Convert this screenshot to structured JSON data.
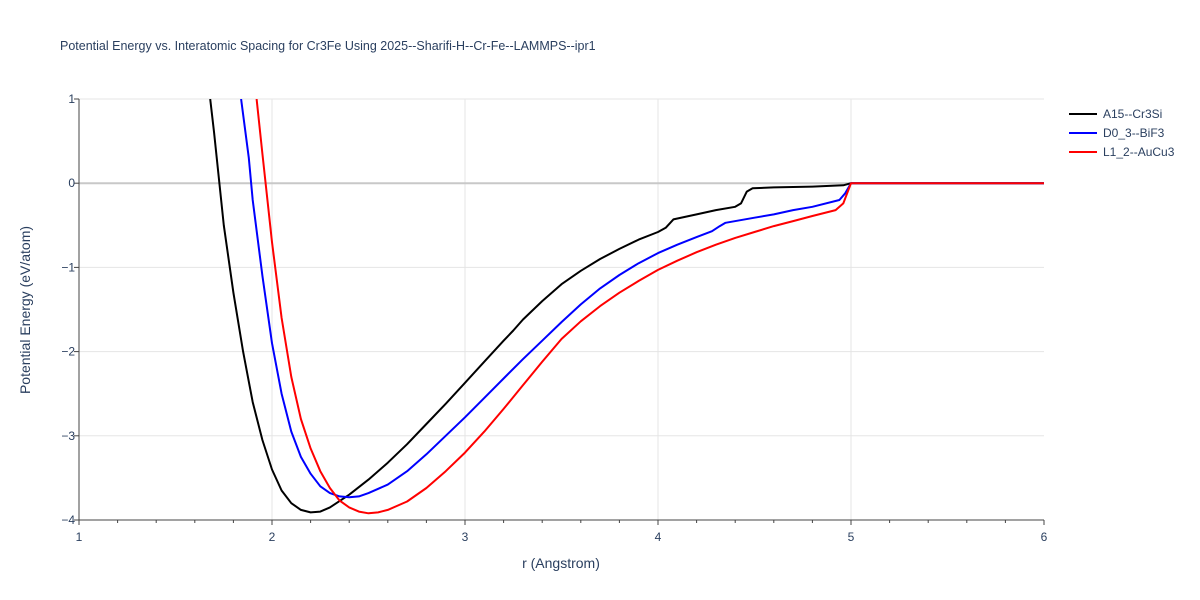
{
  "chart_data": {
    "type": "line",
    "title": "Potential Energy vs. Interatomic Spacing for Cr3Fe Using 2025--Sharifi-H--Cr-Fe--LAMMPS--ipr1",
    "xlabel": "r (Angstrom)",
    "ylabel": "Potential Energy (eV/atom)",
    "xlim": [
      1,
      6
    ],
    "ylim": [
      -4,
      1
    ],
    "x_ticks": [
      "1",
      "2",
      "3",
      "4",
      "5",
      "6"
    ],
    "y_ticks": [
      "1",
      "0",
      "−1",
      "−2",
      "−3",
      "−4"
    ],
    "grid": true,
    "legend_position": "top-right",
    "colors": {
      "grid": "#e5e5e5",
      "zero_line": "#c8c8c8",
      "axis": "#444444"
    },
    "series": [
      {
        "name": "A15--Cr3Si",
        "color": "#000000",
        "points": [
          [
            1.68,
            1.0
          ],
          [
            1.7,
            0.6
          ],
          [
            1.75,
            -0.5
          ],
          [
            1.8,
            -1.3
          ],
          [
            1.85,
            -2.0
          ],
          [
            1.9,
            -2.6
          ],
          [
            1.95,
            -3.05
          ],
          [
            2.0,
            -3.4
          ],
          [
            2.05,
            -3.65
          ],
          [
            2.1,
            -3.8
          ],
          [
            2.15,
            -3.88
          ],
          [
            2.2,
            -3.91
          ],
          [
            2.25,
            -3.9
          ],
          [
            2.3,
            -3.85
          ],
          [
            2.4,
            -3.7
          ],
          [
            2.5,
            -3.52
          ],
          [
            2.6,
            -3.32
          ],
          [
            2.7,
            -3.1
          ],
          [
            2.8,
            -2.86
          ],
          [
            2.9,
            -2.62
          ],
          [
            3.0,
            -2.37
          ],
          [
            3.1,
            -2.12
          ],
          [
            3.2,
            -1.87
          ],
          [
            3.25,
            -1.75
          ],
          [
            3.3,
            -1.62
          ],
          [
            3.4,
            -1.4
          ],
          [
            3.5,
            -1.2
          ],
          [
            3.6,
            -1.04
          ],
          [
            3.7,
            -0.9
          ],
          [
            3.8,
            -0.78
          ],
          [
            3.9,
            -0.67
          ],
          [
            4.0,
            -0.58
          ],
          [
            4.04,
            -0.53
          ],
          [
            4.08,
            -0.43
          ],
          [
            4.2,
            -0.37
          ],
          [
            4.3,
            -0.32
          ],
          [
            4.4,
            -0.28
          ],
          [
            4.43,
            -0.24
          ],
          [
            4.46,
            -0.1
          ],
          [
            4.49,
            -0.06
          ],
          [
            4.6,
            -0.05
          ],
          [
            4.8,
            -0.04
          ],
          [
            4.96,
            -0.025
          ],
          [
            5.0,
            0.0
          ],
          [
            6.0,
            0.0
          ]
        ]
      },
      {
        "name": "D0_3--BiF3",
        "color": "#0000ff",
        "points": [
          [
            1.84,
            1.0
          ],
          [
            1.88,
            0.3
          ],
          [
            1.9,
            -0.2
          ],
          [
            1.95,
            -1.1
          ],
          [
            2.0,
            -1.9
          ],
          [
            2.05,
            -2.5
          ],
          [
            2.1,
            -2.95
          ],
          [
            2.15,
            -3.25
          ],
          [
            2.2,
            -3.45
          ],
          [
            2.25,
            -3.6
          ],
          [
            2.3,
            -3.68
          ],
          [
            2.35,
            -3.72
          ],
          [
            2.4,
            -3.73
          ],
          [
            2.45,
            -3.72
          ],
          [
            2.5,
            -3.68
          ],
          [
            2.6,
            -3.58
          ],
          [
            2.7,
            -3.42
          ],
          [
            2.8,
            -3.22
          ],
          [
            2.9,
            -3.0
          ],
          [
            3.0,
            -2.78
          ],
          [
            3.1,
            -2.55
          ],
          [
            3.2,
            -2.32
          ],
          [
            3.3,
            -2.09
          ],
          [
            3.4,
            -1.87
          ],
          [
            3.5,
            -1.65
          ],
          [
            3.6,
            -1.44
          ],
          [
            3.7,
            -1.25
          ],
          [
            3.8,
            -1.09
          ],
          [
            3.9,
            -0.95
          ],
          [
            4.0,
            -0.83
          ],
          [
            4.1,
            -0.73
          ],
          [
            4.2,
            -0.64
          ],
          [
            4.28,
            -0.57
          ],
          [
            4.32,
            -0.51
          ],
          [
            4.35,
            -0.47
          ],
          [
            4.5,
            -0.41
          ],
          [
            4.6,
            -0.37
          ],
          [
            4.7,
            -0.32
          ],
          [
            4.8,
            -0.28
          ],
          [
            4.94,
            -0.2
          ],
          [
            4.97,
            -0.12
          ],
          [
            5.0,
            0.0
          ],
          [
            6.0,
            0.0
          ]
        ]
      },
      {
        "name": "L1_2--AuCu3",
        "color": "#ff0000",
        "points": [
          [
            1.92,
            1.0
          ],
          [
            1.95,
            0.35
          ],
          [
            2.0,
            -0.7
          ],
          [
            2.05,
            -1.6
          ],
          [
            2.1,
            -2.3
          ],
          [
            2.15,
            -2.8
          ],
          [
            2.2,
            -3.15
          ],
          [
            2.25,
            -3.42
          ],
          [
            2.3,
            -3.62
          ],
          [
            2.35,
            -3.77
          ],
          [
            2.4,
            -3.85
          ],
          [
            2.45,
            -3.9
          ],
          [
            2.5,
            -3.92
          ],
          [
            2.55,
            -3.91
          ],
          [
            2.6,
            -3.88
          ],
          [
            2.7,
            -3.78
          ],
          [
            2.8,
            -3.62
          ],
          [
            2.9,
            -3.42
          ],
          [
            3.0,
            -3.2
          ],
          [
            3.1,
            -2.95
          ],
          [
            3.2,
            -2.68
          ],
          [
            3.3,
            -2.4
          ],
          [
            3.4,
            -2.12
          ],
          [
            3.5,
            -1.85
          ],
          [
            3.6,
            -1.64
          ],
          [
            3.7,
            -1.46
          ],
          [
            3.8,
            -1.3
          ],
          [
            3.9,
            -1.16
          ],
          [
            4.0,
            -1.03
          ],
          [
            4.1,
            -0.92
          ],
          [
            4.2,
            -0.82
          ],
          [
            4.3,
            -0.73
          ],
          [
            4.4,
            -0.65
          ],
          [
            4.5,
            -0.58
          ],
          [
            4.6,
            -0.51
          ],
          [
            4.7,
            -0.45
          ],
          [
            4.8,
            -0.39
          ],
          [
            4.92,
            -0.32
          ],
          [
            4.96,
            -0.24
          ],
          [
            5.0,
            0.0
          ],
          [
            6.0,
            0.0
          ]
        ]
      }
    ]
  }
}
